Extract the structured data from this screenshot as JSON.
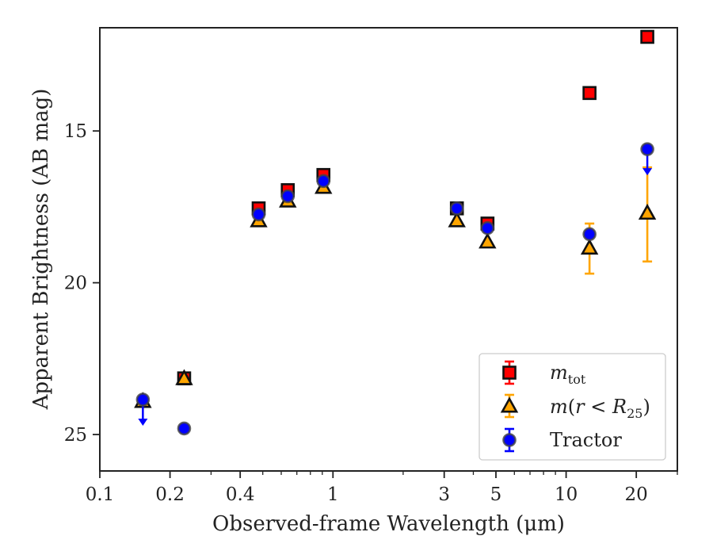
{
  "chart_data": {
    "type": "scatter",
    "xlabel": "Observed-frame Wavelength (μm)",
    "ylabel": "Apparent Brightness (AB mag)",
    "xscale": "log",
    "xlim": [
      0.1,
      30
    ],
    "ylim": [
      26.2,
      11.6
    ],
    "y_inverted": true,
    "xticks": [
      {
        "value": 0.1,
        "label": "0.1"
      },
      {
        "value": 0.2,
        "label": "0.2"
      },
      {
        "value": 0.4,
        "label": "0.4"
      },
      {
        "value": 1,
        "label": "1"
      },
      {
        "value": 3,
        "label": "3"
      },
      {
        "value": 5,
        "label": "5"
      },
      {
        "value": 10,
        "label": "10"
      },
      {
        "value": 20,
        "label": "20"
      }
    ],
    "yticks": [
      {
        "value": 15,
        "label": "15"
      },
      {
        "value": 20,
        "label": "20"
      },
      {
        "value": 25,
        "label": "25"
      }
    ],
    "grid": false,
    "legend_position": "lower-right",
    "series": [
      {
        "name": "m_tot",
        "marker": "square",
        "color": "#ff0000",
        "points": [
          {
            "x": 0.23,
            "y": 23.15
          },
          {
            "x": 0.48,
            "y": 17.55
          },
          {
            "x": 0.64,
            "y": 16.95
          },
          {
            "x": 0.91,
            "y": 16.45
          },
          {
            "x": 3.4,
            "y": 17.55
          },
          {
            "x": 4.6,
            "y": 18.05
          },
          {
            "x": 12.6,
            "y": 13.75
          },
          {
            "x": 22.3,
            "y": 11.9
          }
        ]
      },
      {
        "name": "m(r < R25)",
        "marker": "triangle",
        "color": "#ffa500",
        "points": [
          {
            "x": 0.153,
            "y": 23.9
          },
          {
            "x": 0.23,
            "y": 23.15
          },
          {
            "x": 0.48,
            "y": 17.95
          },
          {
            "x": 0.64,
            "y": 17.3
          },
          {
            "x": 0.91,
            "y": 16.85
          },
          {
            "x": 3.4,
            "y": 17.95
          },
          {
            "x": 4.6,
            "y": 18.65
          },
          {
            "x": 12.6,
            "y": 18.85,
            "err": [
              0.8,
              0.85
            ]
          },
          {
            "x": 22.3,
            "y": 17.7,
            "err": [
              1.5,
              1.6
            ]
          }
        ]
      },
      {
        "name": "Tractor",
        "marker": "circle",
        "color": "#0000ff",
        "points": [
          {
            "x": 0.153,
            "y": 23.85,
            "upper_limit": true
          },
          {
            "x": 0.23,
            "y": 24.8
          },
          {
            "x": 0.48,
            "y": 17.75
          },
          {
            "x": 0.64,
            "y": 17.15
          },
          {
            "x": 0.91,
            "y": 16.65
          },
          {
            "x": 3.4,
            "y": 17.55
          },
          {
            "x": 4.6,
            "y": 18.2
          },
          {
            "x": 12.6,
            "y": 18.4
          },
          {
            "x": 22.3,
            "y": 15.6,
            "upper_limit": true
          }
        ]
      }
    ],
    "legend": [
      {
        "series": 0,
        "marker": "square",
        "color": "#ff0000"
      },
      {
        "series": 1,
        "marker": "triangle",
        "color": "#ffa500"
      },
      {
        "series": 2,
        "marker": "circle",
        "color": "#0000ff"
      }
    ]
  }
}
